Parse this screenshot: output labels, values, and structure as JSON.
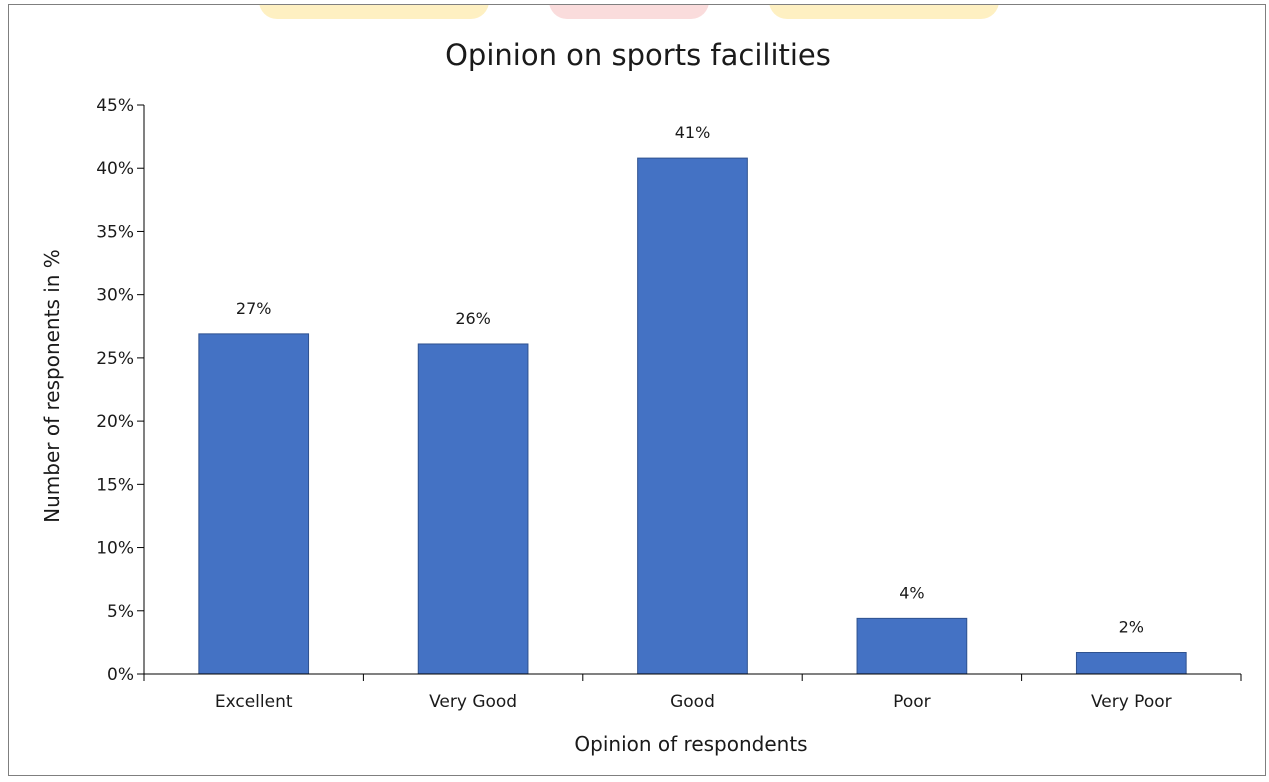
{
  "chart_data": {
    "type": "bar",
    "title": "Opinion on sports facilities",
    "xlabel": "Opinion of respondents",
    "ylabel": "Number of responents in %",
    "categories": [
      "Excellent",
      "Very Good",
      "Good",
      "Poor",
      "Very Poor"
    ],
    "values": [
      26.9,
      26.1,
      40.8,
      4.4,
      1.7
    ],
    "data_labels": [
      "27%",
      "26%",
      "41%",
      "4%",
      "2%"
    ],
    "ylim": [
      0,
      45
    ],
    "yticks": [
      0,
      5,
      10,
      15,
      20,
      25,
      30,
      35,
      40,
      45
    ],
    "ytick_labels": [
      "0%",
      "5%",
      "10%",
      "15%",
      "20%",
      "25%",
      "30%",
      "35%",
      "40%",
      "45%"
    ],
    "grid": false,
    "legend": "none",
    "colors": {
      "bar": "#4472c4",
      "bar_edge": "#2f528f",
      "axis": "#000000",
      "watermark_a": "#fde9a8",
      "watermark_b": "#f6c4c4"
    }
  }
}
